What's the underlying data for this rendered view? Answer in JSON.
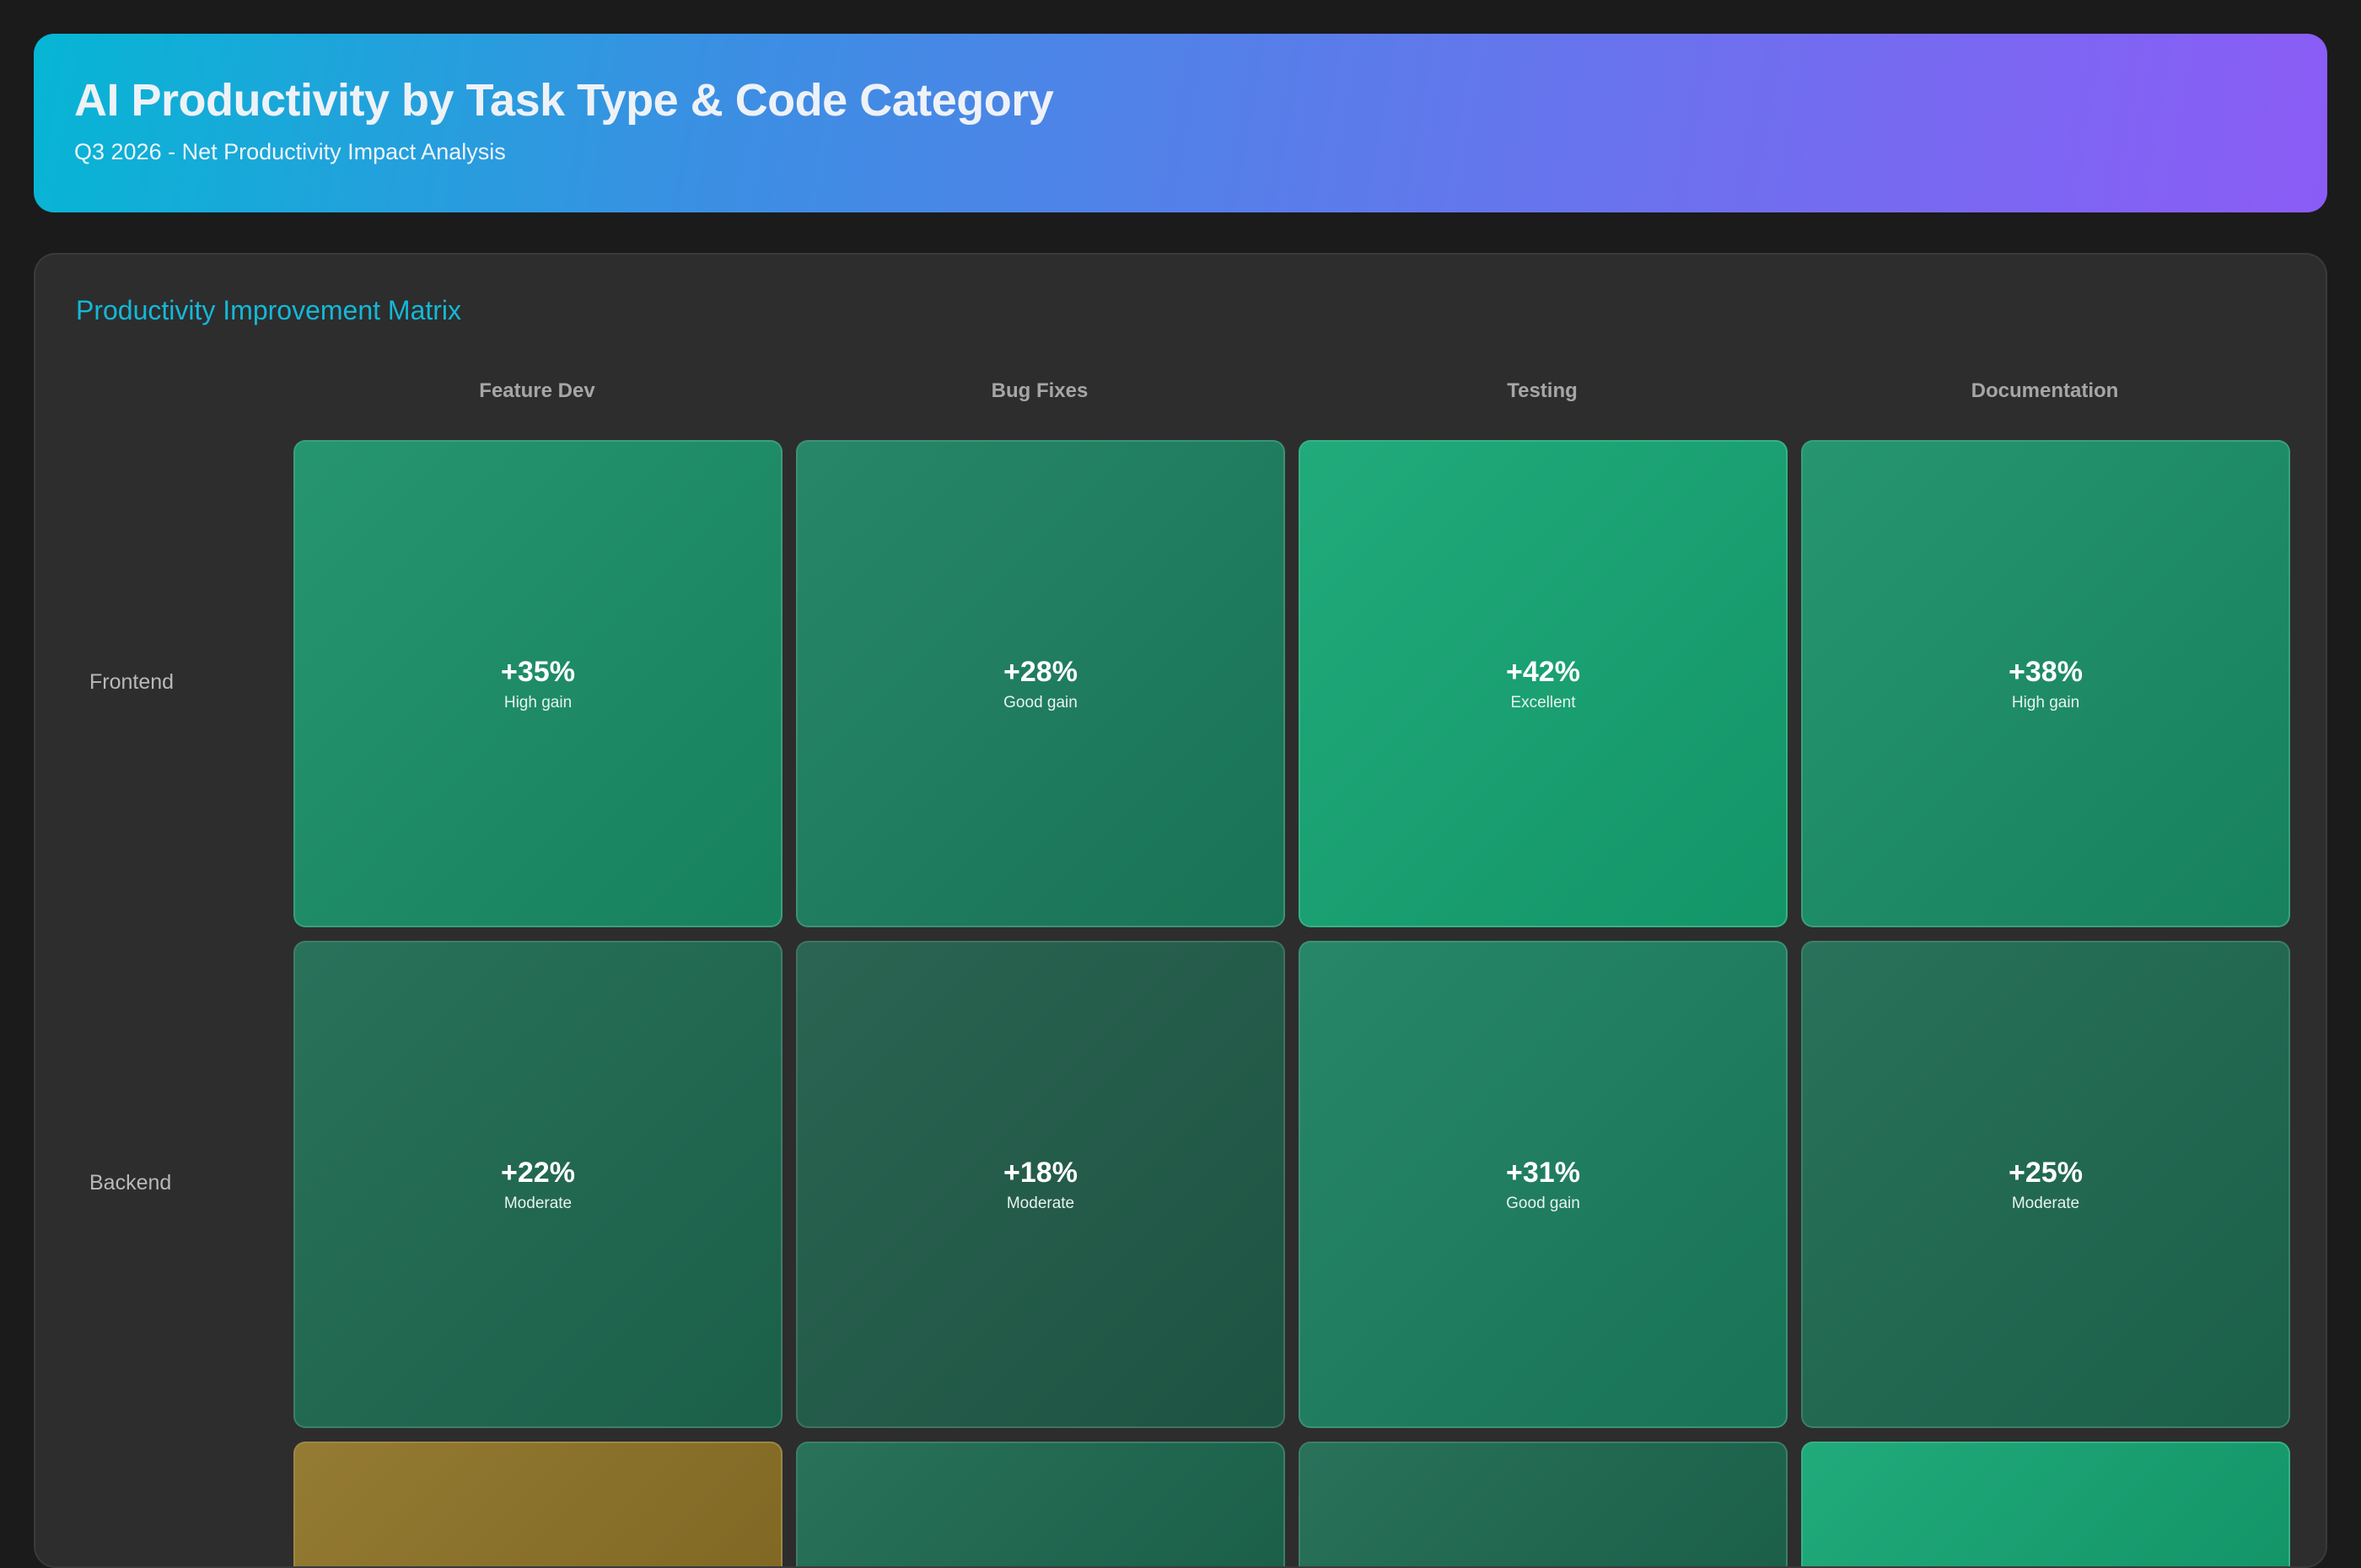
{
  "header": {
    "title": "AI Productivity by Task Type & Code Category",
    "subtitle": "Q3 2026 - Net Productivity Impact Analysis"
  },
  "panel": {
    "title": "Productivity Improvement Matrix"
  },
  "colors": {
    "excellent": "#15a674",
    "high": "#1a9068",
    "good": "#1c8060",
    "moderate": "#1e6a51",
    "moderate_low": "#205c49",
    "warning": "#8f7428"
  },
  "chart_data": {
    "type": "heatmap",
    "title": "Productivity Improvement Matrix",
    "columns": [
      "Feature Dev",
      "Bug Fixes",
      "Testing",
      "Documentation"
    ],
    "rows": [
      "Frontend",
      "Backend"
    ],
    "cells": [
      [
        {
          "value": "+35%",
          "label": "High gain",
          "color": "#1a9068"
        },
        {
          "value": "+28%",
          "label": "Good gain",
          "color": "#1c8060"
        },
        {
          "value": "+42%",
          "label": "Excellent",
          "color": "#15a674"
        },
        {
          "value": "+38%",
          "label": "High gain",
          "color": "#1a9068"
        }
      ],
      [
        {
          "value": "+22%",
          "label": "Moderate",
          "color": "#1e6a51"
        },
        {
          "value": "+18%",
          "label": "Moderate",
          "color": "#205c49"
        },
        {
          "value": "+31%",
          "label": "Good gain",
          "color": "#1c8060"
        },
        {
          "value": "+25%",
          "label": "Moderate",
          "color": "#1e6a51"
        }
      ]
    ],
    "partial_row_colors": [
      "#8f7428",
      "#1e6a51",
      "#1e6a51",
      "#15a674"
    ]
  }
}
